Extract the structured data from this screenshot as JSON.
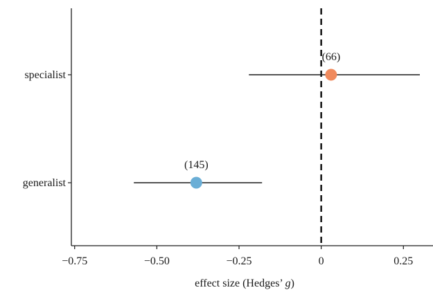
{
  "chart_data": {
    "type": "forest",
    "xlabel": {
      "prefix": "effect size (Hedges’ ",
      "italic": "g",
      "suffix": ")"
    },
    "xlim": [
      -0.76,
      0.34
    ],
    "x_ticks": [
      -0.75,
      -0.5,
      -0.25,
      0,
      0.25
    ],
    "x_tick_labels": [
      "−0.75",
      "−0.50",
      "−0.25",
      "0",
      "0.25"
    ],
    "reference_line": 0,
    "categories": [
      "specialist",
      "generalist"
    ],
    "estimates": [
      {
        "category": "specialist",
        "mean": 0.03,
        "ci": [
          -0.22,
          0.3
        ],
        "n_label": "(66)",
        "color": "#f08a5d"
      },
      {
        "category": "generalist",
        "mean": -0.38,
        "ci": [
          -0.57,
          -0.18
        ],
        "n_label": "(145)",
        "color": "#6aaed6"
      }
    ],
    "grid": false
  }
}
